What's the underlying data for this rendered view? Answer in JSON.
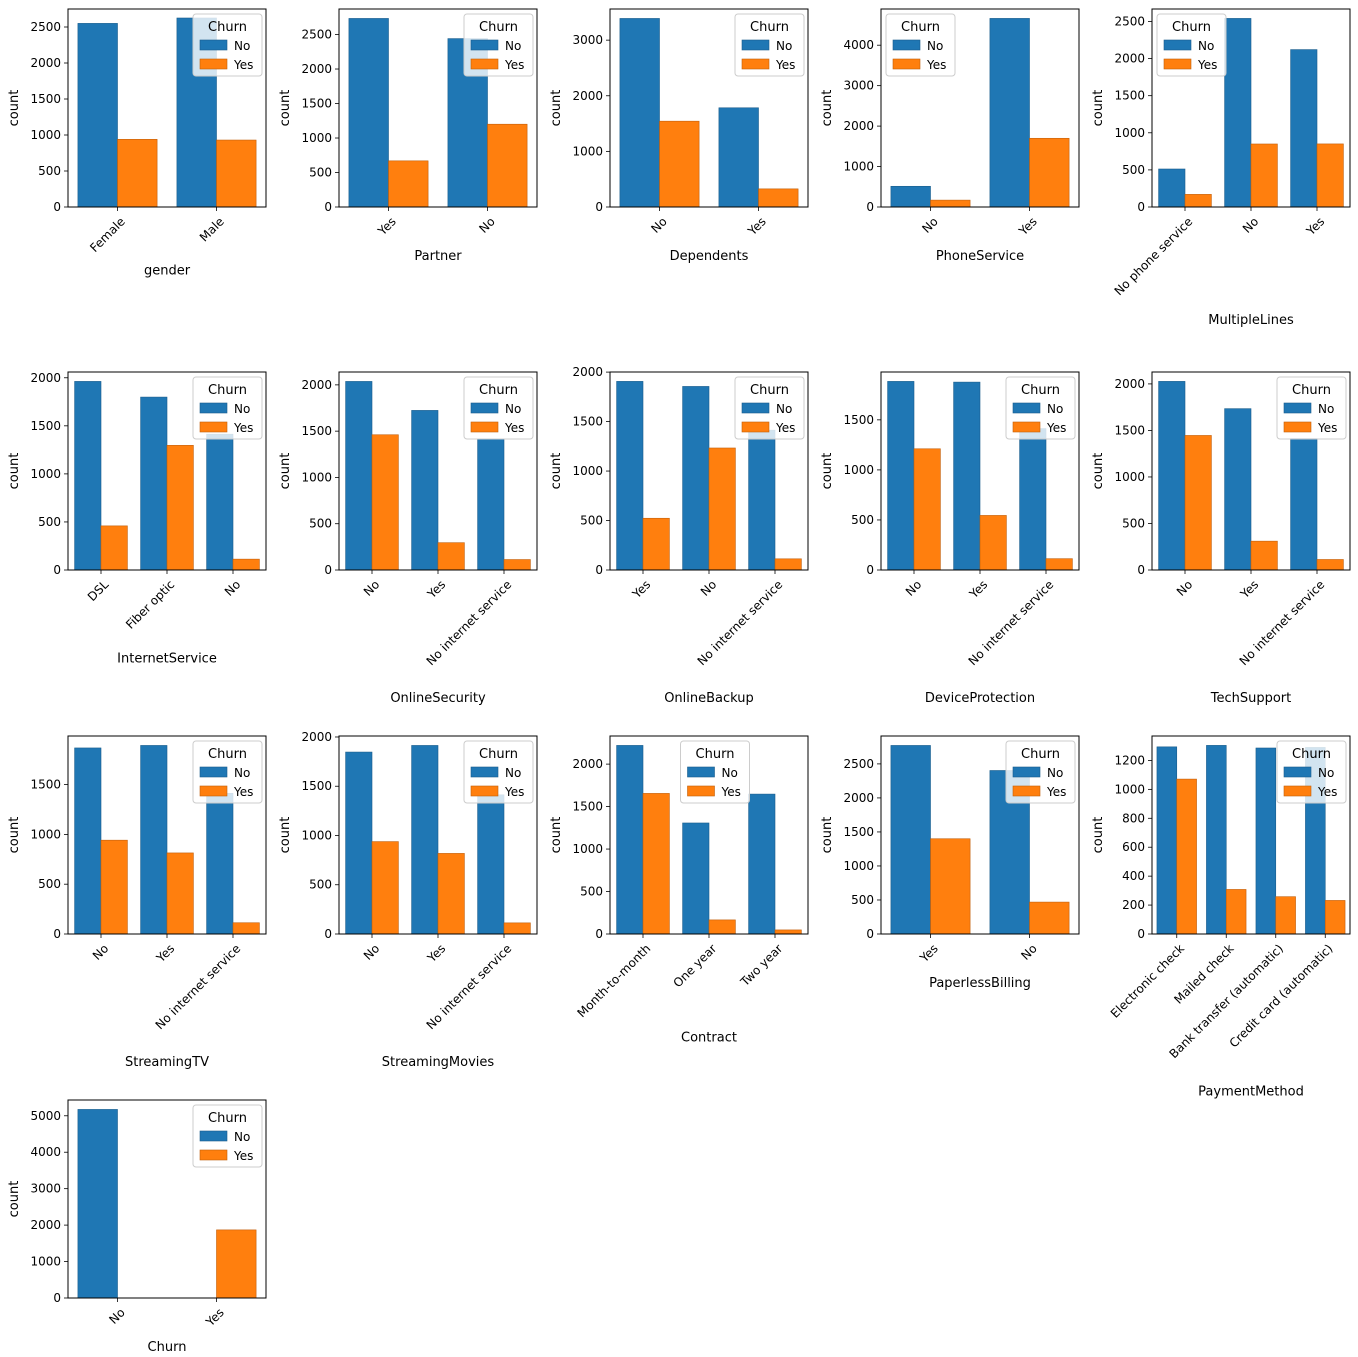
{
  "colors": {
    "No": "#1f77b4",
    "Yes": "#ff7f0e",
    "No_edge": "#1a5d8c",
    "Yes_edge": "#c25f0b"
  },
  "chart_data": [
    {
      "type": "bar",
      "xlabel": "gender",
      "ylabel": "count",
      "legend_title": "Churn",
      "legend_labels": [
        "No",
        "Yes"
      ],
      "legend_position": "top-right",
      "categories": [
        "Female",
        "Male"
      ],
      "series": [
        {
          "name": "No",
          "values": [
            2550,
            2625
          ]
        },
        {
          "name": "Yes",
          "values": [
            940,
            930
          ]
        }
      ],
      "yticks": [
        0,
        500,
        1000,
        1500,
        2000,
        2500
      ],
      "ylim": [
        0,
        2750
      ]
    },
    {
      "type": "bar",
      "xlabel": "Partner",
      "ylabel": "count",
      "legend_title": "Churn",
      "legend_labels": [
        "No",
        "Yes"
      ],
      "legend_position": "top-right",
      "categories": [
        "Yes",
        "No"
      ],
      "series": [
        {
          "name": "No",
          "values": [
            2733,
            2441
          ]
        },
        {
          "name": "Yes",
          "values": [
            669,
            1200
          ]
        }
      ],
      "yticks": [
        0,
        500,
        1000,
        1500,
        2000,
        2500
      ],
      "ylim": [
        0,
        2870
      ]
    },
    {
      "type": "bar",
      "xlabel": "Dependents",
      "ylabel": "count",
      "legend_title": "Churn",
      "legend_labels": [
        "No",
        "Yes"
      ],
      "legend_position": "top-right",
      "categories": [
        "No",
        "Yes"
      ],
      "series": [
        {
          "name": "No",
          "values": [
            3390,
            1784
          ]
        },
        {
          "name": "Yes",
          "values": [
            1543,
            326
          ]
        }
      ],
      "yticks": [
        0,
        1000,
        2000,
        3000
      ],
      "ylim": [
        0,
        3560
      ]
    },
    {
      "type": "bar",
      "xlabel": "PhoneService",
      "ylabel": "count",
      "legend_title": "Churn",
      "legend_labels": [
        "No",
        "Yes"
      ],
      "legend_position": "top-left",
      "categories": [
        "No",
        "Yes"
      ],
      "series": [
        {
          "name": "No",
          "values": [
            512,
            4662
          ]
        },
        {
          "name": "Yes",
          "values": [
            170,
            1699
          ]
        }
      ],
      "yticks": [
        0,
        1000,
        2000,
        3000,
        4000
      ],
      "ylim": [
        0,
        4895
      ]
    },
    {
      "type": "bar",
      "xlabel": "MultipleLines",
      "ylabel": "count",
      "legend_title": "Churn",
      "legend_labels": [
        "No",
        "Yes"
      ],
      "legend_position": "top-left",
      "categories": [
        "No phone service",
        "No",
        "Yes"
      ],
      "series": [
        {
          "name": "No",
          "values": [
            512,
            2541,
            2121
          ]
        },
        {
          "name": "Yes",
          "values": [
            170,
            849,
            850
          ]
        }
      ],
      "yticks": [
        0,
        500,
        1000,
        1500,
        2000,
        2500
      ],
      "ylim": [
        0,
        2668
      ]
    },
    {
      "type": "bar",
      "xlabel": "InternetService",
      "ylabel": "count",
      "legend_title": "Churn",
      "legend_labels": [
        "No",
        "Yes"
      ],
      "legend_position": "top-right",
      "categories": [
        "DSL",
        "Fiber optic",
        "No"
      ],
      "series": [
        {
          "name": "No",
          "values": [
            1962,
            1799,
            1413
          ]
        },
        {
          "name": "Yes",
          "values": [
            459,
            1297,
            113
          ]
        }
      ],
      "yticks": [
        0,
        500,
        1000,
        1500,
        2000
      ],
      "ylim": [
        0,
        2060
      ]
    },
    {
      "type": "bar",
      "xlabel": "OnlineSecurity",
      "ylabel": "count",
      "legend_title": "Churn",
      "legend_labels": [
        "No",
        "Yes"
      ],
      "legend_position": "top-right",
      "categories": [
        "No",
        "Yes",
        "No internet service"
      ],
      "series": [
        {
          "name": "No",
          "values": [
            2037,
            1724,
            1413
          ]
        },
        {
          "name": "Yes",
          "values": [
            1461,
            295,
            113
          ]
        }
      ],
      "yticks": [
        0,
        500,
        1000,
        1500,
        2000
      ],
      "ylim": [
        0,
        2139
      ]
    },
    {
      "type": "bar",
      "xlabel": "OnlineBackup",
      "ylabel": "count",
      "legend_title": "Churn",
      "legend_labels": [
        "No",
        "Yes"
      ],
      "legend_position": "top-right",
      "categories": [
        "Yes",
        "No",
        "No internet service"
      ],
      "series": [
        {
          "name": "No",
          "values": [
            1906,
            1855,
            1413
          ]
        },
        {
          "name": "Yes",
          "values": [
            523,
            1233,
            113
          ]
        }
      ],
      "yticks": [
        0,
        500,
        1000,
        1500,
        2000
      ],
      "ylim": [
        0,
        2001
      ]
    },
    {
      "type": "bar",
      "xlabel": "DeviceProtection",
      "ylabel": "count",
      "legend_title": "Churn",
      "legend_labels": [
        "No",
        "Yes"
      ],
      "legend_position": "top-right",
      "categories": [
        "No",
        "Yes",
        "No internet service"
      ],
      "series": [
        {
          "name": "No",
          "values": [
            1884,
            1877,
            1413
          ]
        },
        {
          "name": "Yes",
          "values": [
            1211,
            545,
            113
          ]
        }
      ],
      "yticks": [
        0,
        500,
        1000,
        1500
      ],
      "ylim": [
        0,
        1978
      ]
    },
    {
      "type": "bar",
      "xlabel": "TechSupport",
      "ylabel": "count",
      "legend_title": "Churn",
      "legend_labels": [
        "No",
        "Yes"
      ],
      "legend_position": "top-right",
      "categories": [
        "No",
        "Yes",
        "No internet service"
      ],
      "series": [
        {
          "name": "No",
          "values": [
            2027,
            1734,
            1413
          ]
        },
        {
          "name": "Yes",
          "values": [
            1446,
            310,
            113
          ]
        }
      ],
      "yticks": [
        0,
        500,
        1000,
        1500,
        2000
      ],
      "ylim": [
        0,
        2128
      ]
    },
    {
      "type": "bar",
      "xlabel": "StreamingTV",
      "ylabel": "count",
      "legend_title": "Churn",
      "legend_labels": [
        "No",
        "Yes"
      ],
      "legend_position": "top-right",
      "categories": [
        "No",
        "Yes",
        "No internet service"
      ],
      "series": [
        {
          "name": "No",
          "values": [
            1868,
            1893,
            1413
          ]
        },
        {
          "name": "Yes",
          "values": [
            942,
            814,
            113
          ]
        }
      ],
      "yticks": [
        0,
        500,
        1000,
        1500
      ],
      "ylim": [
        0,
        1988
      ]
    },
    {
      "type": "bar",
      "xlabel": "StreamingMovies",
      "ylabel": "count",
      "legend_title": "Churn",
      "legend_labels": [
        "No",
        "Yes"
      ],
      "legend_position": "top-right",
      "categories": [
        "No",
        "Yes",
        "No internet service"
      ],
      "series": [
        {
          "name": "No",
          "values": [
            1847,
            1914,
            1413
          ]
        },
        {
          "name": "Yes",
          "values": [
            938,
            818,
            113
          ]
        }
      ],
      "yticks": [
        0,
        500,
        1000,
        1500,
        2000
      ],
      "ylim": [
        0,
        2010
      ]
    },
    {
      "type": "bar",
      "xlabel": "Contract",
      "ylabel": "count",
      "legend_title": "Churn",
      "legend_labels": [
        "No",
        "Yes"
      ],
      "legend_position": "top-center",
      "categories": [
        "Month-to-month",
        "One year",
        "Two year"
      ],
      "series": [
        {
          "name": "No",
          "values": [
            2220,
            1307,
            1647
          ]
        },
        {
          "name": "Yes",
          "values": [
            1655,
            166,
            48
          ]
        }
      ],
      "yticks": [
        0,
        500,
        1000,
        1500,
        2000
      ],
      "ylim": [
        0,
        2331
      ]
    },
    {
      "type": "bar",
      "xlabel": "PaperlessBilling",
      "ylabel": "count",
      "legend_title": "Churn",
      "legend_labels": [
        "No",
        "Yes"
      ],
      "legend_position": "top-right",
      "categories": [
        "Yes",
        "No"
      ],
      "series": [
        {
          "name": "No",
          "values": [
            2771,
            2403
          ]
        },
        {
          "name": "Yes",
          "values": [
            1400,
            469
          ]
        }
      ],
      "yticks": [
        0,
        500,
        1000,
        1500,
        2000,
        2500
      ],
      "ylim": [
        0,
        2910
      ]
    },
    {
      "type": "bar",
      "xlabel": "PaymentMethod",
      "ylabel": "count",
      "legend_title": "Churn",
      "legend_labels": [
        "No",
        "Yes"
      ],
      "legend_position": "top-right",
      "categories": [
        "Electronic check",
        "Mailed check",
        "Bank transfer (automatic)",
        "Credit card (automatic)"
      ],
      "series": [
        {
          "name": "No",
          "values": [
            1294,
            1304,
            1286,
            1290
          ]
        },
        {
          "name": "Yes",
          "values": [
            1071,
            308,
            258,
            232
          ]
        }
      ],
      "yticks": [
        0,
        200,
        400,
        600,
        800,
        1000,
        1200
      ],
      "ylim": [
        0,
        1369
      ]
    },
    {
      "type": "bar",
      "xlabel": "Churn",
      "ylabel": "count",
      "legend_title": "Churn",
      "legend_labels": [
        "No",
        "Yes"
      ],
      "legend_position": "top-right",
      "categories": [
        "No",
        "Yes"
      ],
      "hue_single": true,
      "series": [
        {
          "name": "No",
          "values": [
            5174,
            0
          ]
        },
        {
          "name": "Yes",
          "values": [
            0,
            1869
          ]
        }
      ],
      "yticks": [
        0,
        1000,
        2000,
        3000,
        4000,
        5000
      ],
      "ylim": [
        0,
        5433
      ]
    }
  ]
}
